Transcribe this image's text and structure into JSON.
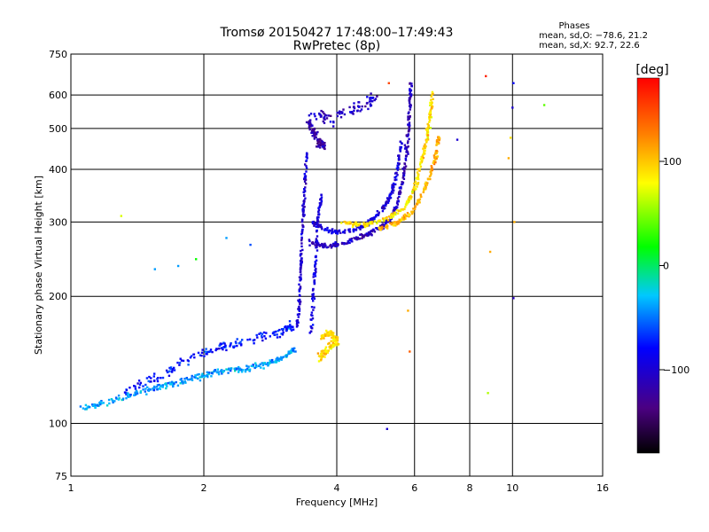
{
  "chart_data": {
    "type": "scatter",
    "title": "Tromsø 20150427 17:48:00–17:49:43",
    "subtitle": "RwPretec (8p)",
    "stats": {
      "heading": "Phases",
      "line_o": "mean, sd,O: −78.6, 21.2",
      "line_x": "mean, sd,X:  92.7, 22.6"
    },
    "xlabel": "Frequency [MHz]",
    "ylabel": "Stationary phase Virtual Height [km]",
    "xscale": "log",
    "yscale": "log",
    "xlim": [
      1,
      16
    ],
    "ylim": [
      75,
      750
    ],
    "xticks": [
      1,
      2,
      4,
      6,
      8,
      10,
      16
    ],
    "xtick_labels": [
      "1",
      "2",
      "4",
      "6",
      "8",
      "10",
      "16"
    ],
    "yticks": [
      75,
      100,
      200,
      300,
      400,
      500,
      600,
      750
    ],
    "ytick_labels": [
      "75",
      "100",
      "200",
      "300",
      "400",
      "500",
      "600",
      "750"
    ],
    "grid": true,
    "colorbar": {
      "label": "[deg]",
      "range": [
        -180,
        180
      ],
      "ticks": [
        100,
        0,
        -100
      ],
      "tick_labels": [
        "100",
        "0",
        "−100"
      ]
    },
    "traces": [
      {
        "desc": "O-mode E/F1 low trace",
        "phase": -40,
        "spread": 0.025,
        "points": [
          [
            1.05,
            108
          ],
          [
            1.2,
            112
          ],
          [
            1.4,
            118
          ],
          [
            1.6,
            122
          ],
          [
            1.8,
            126
          ],
          [
            2.0,
            130
          ],
          [
            2.2,
            133
          ],
          [
            2.5,
            135
          ],
          [
            2.8,
            139
          ],
          [
            3.0,
            142
          ],
          [
            3.2,
            150
          ]
        ]
      },
      {
        "desc": "O-mode F1 upper trace",
        "phase": -75,
        "spread": 0.035,
        "points": [
          [
            1.3,
            118
          ],
          [
            1.6,
            130
          ],
          [
            1.9,
            145
          ],
          [
            2.2,
            152
          ],
          [
            2.6,
            158
          ],
          [
            3.0,
            165
          ],
          [
            3.2,
            172
          ]
        ]
      },
      {
        "desc": "O-mode near-vertical cusp",
        "phase": -100,
        "spread": 0.015,
        "points": [
          [
            3.25,
            165
          ],
          [
            3.3,
            200
          ],
          [
            3.32,
            240
          ],
          [
            3.35,
            300
          ],
          [
            3.38,
            360
          ],
          [
            3.42,
            440
          ]
        ]
      },
      {
        "desc": "O-mode cusp column 2",
        "phase": -95,
        "spread": 0.015,
        "points": [
          [
            3.5,
            165
          ],
          [
            3.55,
            210
          ],
          [
            3.6,
            260
          ],
          [
            3.62,
            300
          ],
          [
            3.7,
            350
          ]
        ]
      },
      {
        "desc": "O-mode F2 lower trace",
        "phase": -110,
        "spread": 0.02,
        "points": [
          [
            3.45,
            270
          ],
          [
            3.8,
            262
          ],
          [
            4.2,
            268
          ],
          [
            4.6,
            278
          ],
          [
            5.0,
            290
          ],
          [
            5.3,
            305
          ],
          [
            5.5,
            335
          ],
          [
            5.7,
            400
          ],
          [
            5.8,
            480
          ],
          [
            5.85,
            560
          ],
          [
            5.9,
            640
          ]
        ]
      },
      {
        "desc": "O-mode F2 upper trace",
        "phase": -95,
        "spread": 0.02,
        "points": [
          [
            3.5,
            300
          ],
          [
            3.9,
            285
          ],
          [
            4.3,
            285
          ],
          [
            4.7,
            298
          ],
          [
            5.0,
            315
          ],
          [
            5.3,
            345
          ],
          [
            5.5,
            400
          ],
          [
            5.6,
            470
          ]
        ]
      },
      {
        "desc": "O-mode high-altitude blob",
        "phase": -120,
        "spread": 0.03,
        "points": [
          [
            3.45,
            520
          ],
          [
            3.55,
            490
          ],
          [
            3.65,
            460
          ],
          [
            3.75,
            455
          ]
        ]
      },
      {
        "desc": "O-mode spread top",
        "phase": -105,
        "spread": 0.05,
        "points": [
          [
            3.5,
            530
          ],
          [
            3.9,
            530
          ],
          [
            4.5,
            560
          ],
          [
            4.9,
            590
          ]
        ]
      },
      {
        "desc": "X-mode low trace",
        "phase": 95,
        "spread": 0.03,
        "points": [
          [
            3.6,
            140
          ],
          [
            3.8,
            150
          ],
          [
            4.0,
            155
          ],
          [
            3.9,
            165
          ],
          [
            3.7,
            160
          ]
        ]
      },
      {
        "desc": "X-mode F2 trace",
        "phase": 92,
        "spread": 0.02,
        "points": [
          [
            4.1,
            300
          ],
          [
            4.6,
            295
          ],
          [
            5.2,
            305
          ],
          [
            5.7,
            325
          ],
          [
            6.0,
            360
          ],
          [
            6.2,
            410
          ],
          [
            6.4,
            470
          ],
          [
            6.5,
            530
          ],
          [
            6.6,
            610
          ]
        ]
      },
      {
        "desc": "X-mode secondary trace",
        "phase": 110,
        "spread": 0.02,
        "points": [
          [
            5.0,
            290
          ],
          [
            5.5,
            300
          ],
          [
            6.0,
            320
          ],
          [
            6.4,
            370
          ],
          [
            6.7,
            430
          ],
          [
            6.8,
            480
          ]
        ]
      }
    ],
    "isolated_points": [
      [
        1.3,
        310,
        70
      ],
      [
        1.55,
        232,
        -40
      ],
      [
        1.75,
        236,
        -40
      ],
      [
        1.92,
        245,
        20
      ],
      [
        2.25,
        275,
        -40
      ],
      [
        2.55,
        265,
        -60
      ],
      [
        5.2,
        97,
        -100
      ],
      [
        5.25,
        640,
        150
      ],
      [
        5.8,
        185,
        110
      ],
      [
        5.85,
        148,
        140
      ],
      [
        7.5,
        470,
        -100
      ],
      [
        8.7,
        665,
        165
      ],
      [
        8.9,
        255,
        110
      ],
      [
        8.8,
        118,
        60
      ],
      [
        9.8,
        425,
        110
      ],
      [
        9.9,
        475,
        90
      ],
      [
        10.0,
        560,
        -100
      ],
      [
        10.05,
        640,
        -80
      ],
      [
        10.05,
        198,
        -110
      ],
      [
        10.1,
        300,
        110
      ],
      [
        11.8,
        568,
        40
      ]
    ]
  }
}
